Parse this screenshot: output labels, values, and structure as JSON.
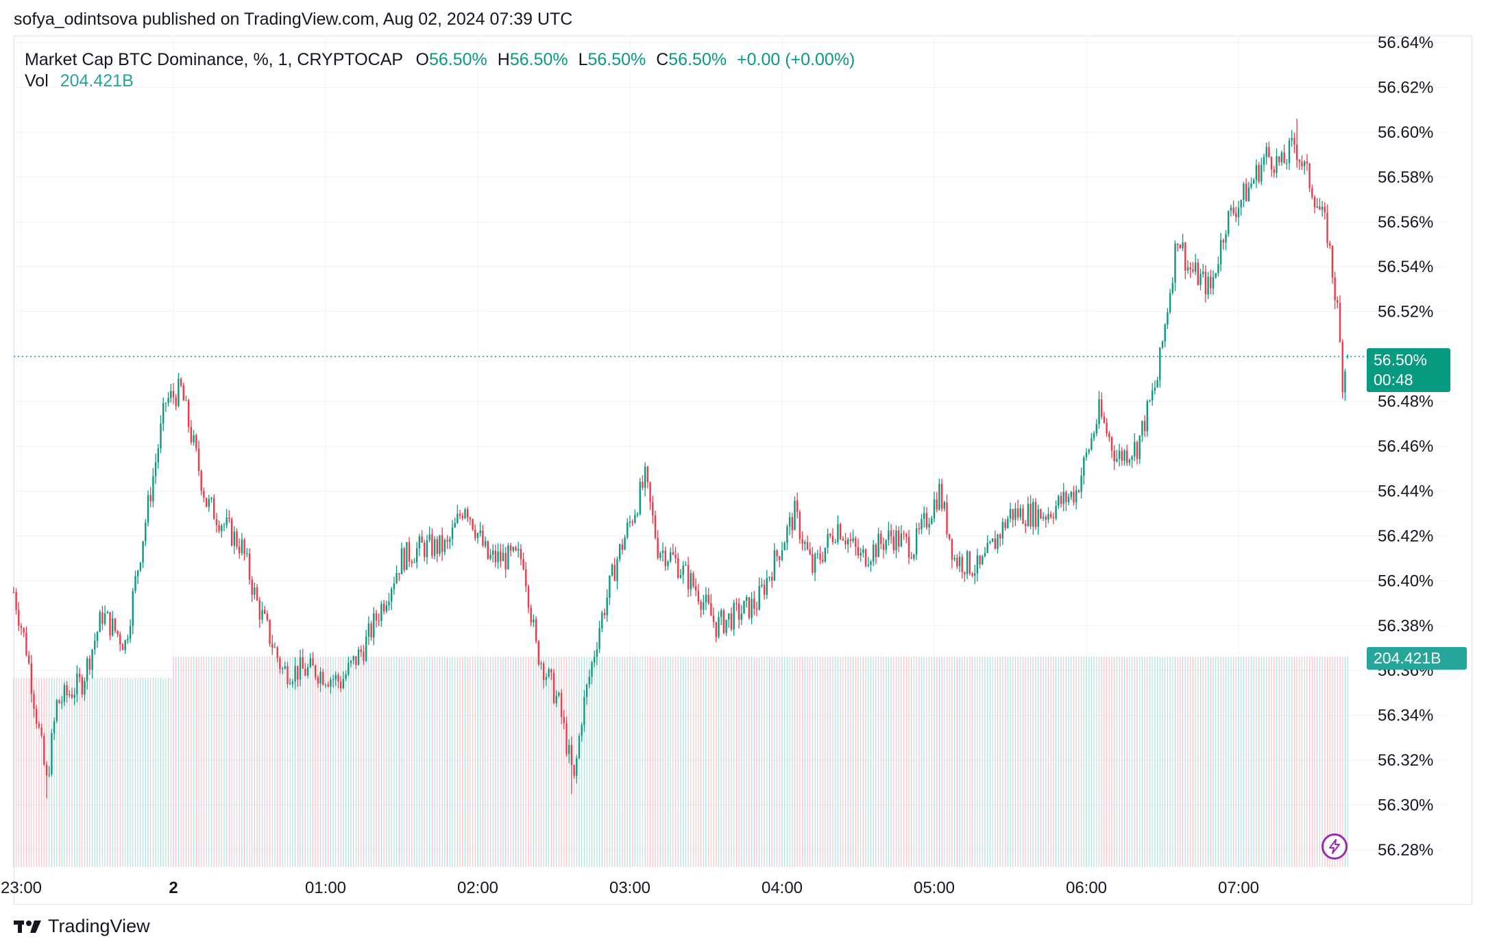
{
  "publisher": "sofya_odintsova published on TradingView.com, Aug 02, 2024 07:39 UTC",
  "legend": {
    "symbol": "Market Cap BTC Dominance, %, 1, CRYPTOCAP",
    "o_label": "O",
    "o_value": "56.50%",
    "h_label": "H",
    "h_value": "56.50%",
    "l_label": "L",
    "l_value": "56.50%",
    "c_label": "C",
    "c_value": "56.50%",
    "change": "+0.00 (+0.00%)"
  },
  "volume": {
    "label": "Vol",
    "value": "204.421B"
  },
  "badges": {
    "price": "56.50%",
    "countdown": "00:48",
    "volume": "204.421B"
  },
  "branding": {
    "name": "TradingView"
  },
  "icons": {
    "lightning": "lightning-icon",
    "logo": "tradingview-logo-icon"
  },
  "colors": {
    "up": "#089981",
    "down": "#f23645",
    "grid": "#f0f3fa",
    "accent": "#089981",
    "lightning": "#9c27b0"
  },
  "chart_data": {
    "type": "candlestick",
    "title": "Market Cap BTC Dominance, %, 1, CRYPTOCAP",
    "interval": "1 minute",
    "y_unit": "%",
    "ylim": [
      56.27,
      56.645
    ],
    "y_ticks": [
      "56.64%",
      "56.62%",
      "56.60%",
      "56.58%",
      "56.56%",
      "56.54%",
      "56.52%",
      "56.50%",
      "56.48%",
      "56.46%",
      "56.44%",
      "56.42%",
      "56.40%",
      "56.38%",
      "56.36%",
      "56.34%",
      "56.32%",
      "56.30%",
      "56.28%"
    ],
    "x_tick_labels": [
      "23:00",
      "2",
      "01:00",
      "02:00",
      "03:00",
      "04:00",
      "05:00",
      "06:00",
      "07:00"
    ],
    "x_tick_minutes": [
      -60,
      0,
      60,
      120,
      180,
      240,
      300,
      360,
      420
    ],
    "x_range_minutes": [
      -63,
      472
    ],
    "last_price": 56.5,
    "last_volume": "204.421B",
    "series": [
      {
        "name": "BTC Dominance",
        "waypoints": [
          {
            "minute": -63,
            "value": 56.395
          },
          {
            "minute": -58,
            "value": 56.37
          },
          {
            "minute": -50,
            "value": 56.31
          },
          {
            "minute": -46,
            "value": 56.345
          },
          {
            "minute": -36,
            "value": 56.355
          },
          {
            "minute": -28,
            "value": 56.385
          },
          {
            "minute": -19,
            "value": 56.372
          },
          {
            "minute": -12,
            "value": 56.42
          },
          {
            "minute": -6,
            "value": 56.46
          },
          {
            "minute": -3,
            "value": 56.48
          },
          {
            "minute": 3,
            "value": 56.485
          },
          {
            "minute": 8,
            "value": 56.46
          },
          {
            "minute": 13,
            "value": 56.435
          },
          {
            "minute": 27,
            "value": 56.415
          },
          {
            "minute": 33,
            "value": 56.39
          },
          {
            "minute": 43,
            "value": 56.36
          },
          {
            "minute": 56,
            "value": 56.36
          },
          {
            "minute": 66,
            "value": 56.355
          },
          {
            "minute": 75,
            "value": 56.37
          },
          {
            "minute": 90,
            "value": 56.41
          },
          {
            "minute": 98,
            "value": 56.415
          },
          {
            "minute": 108,
            "value": 56.415
          },
          {
            "minute": 115,
            "value": 56.435
          },
          {
            "minute": 124,
            "value": 56.41
          },
          {
            "minute": 138,
            "value": 56.41
          },
          {
            "minute": 143,
            "value": 56.37
          },
          {
            "minute": 152,
            "value": 56.345
          },
          {
            "minute": 158,
            "value": 56.31
          },
          {
            "minute": 161,
            "value": 56.34
          },
          {
            "minute": 168,
            "value": 56.38
          },
          {
            "minute": 175,
            "value": 56.41
          },
          {
            "minute": 186,
            "value": 56.445
          },
          {
            "minute": 191,
            "value": 56.415
          },
          {
            "minute": 197,
            "value": 56.41
          },
          {
            "minute": 207,
            "value": 56.395
          },
          {
            "minute": 214,
            "value": 56.38
          },
          {
            "minute": 230,
            "value": 56.39
          },
          {
            "minute": 245,
            "value": 56.43
          },
          {
            "minute": 252,
            "value": 56.405
          },
          {
            "minute": 262,
            "value": 56.425
          },
          {
            "minute": 271,
            "value": 56.41
          },
          {
            "minute": 283,
            "value": 56.42
          },
          {
            "minute": 292,
            "value": 56.415
          },
          {
            "minute": 302,
            "value": 56.44
          },
          {
            "minute": 308,
            "value": 56.41
          },
          {
            "minute": 318,
            "value": 56.405
          },
          {
            "minute": 330,
            "value": 56.43
          },
          {
            "minute": 344,
            "value": 56.43
          },
          {
            "minute": 356,
            "value": 56.44
          },
          {
            "minute": 365,
            "value": 56.475
          },
          {
            "minute": 372,
            "value": 56.455
          },
          {
            "minute": 380,
            "value": 56.46
          },
          {
            "minute": 388,
            "value": 56.49
          },
          {
            "minute": 396,
            "value": 56.555
          },
          {
            "minute": 400,
            "value": 56.54
          },
          {
            "minute": 409,
            "value": 56.53
          },
          {
            "minute": 415,
            "value": 56.56
          },
          {
            "minute": 424,
            "value": 56.575
          },
          {
            "minute": 431,
            "value": 56.59
          },
          {
            "minute": 437,
            "value": 56.585
          },
          {
            "minute": 442,
            "value": 56.595
          },
          {
            "minute": 449,
            "value": 56.575
          },
          {
            "minute": 455,
            "value": 56.555
          },
          {
            "minute": 459,
            "value": 56.52
          },
          {
            "minute": 461,
            "value": 56.49
          },
          {
            "minute": 463,
            "value": 56.5
          }
        ],
        "notable_points": [
          {
            "label": "session high",
            "minute": 443,
            "value": 56.606
          },
          {
            "label": "session low",
            "minute": 157,
            "value": 56.305
          },
          {
            "label": "early low",
            "minute": -50,
            "value": 56.303
          },
          {
            "label": "local high",
            "minute": 2,
            "value": 56.487
          }
        ]
      }
    ]
  }
}
